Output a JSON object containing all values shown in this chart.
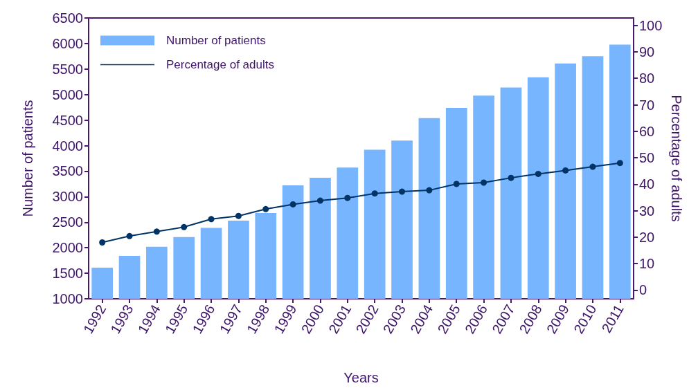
{
  "chart_data": {
    "type": "bar",
    "xlabel": "Years",
    "ylabel": "Number of patients",
    "y2label": "Percentage of adults",
    "categories": [
      "1992",
      "1993",
      "1994",
      "1995",
      "1996",
      "1997",
      "1998",
      "1999",
      "2000",
      "2001",
      "2002",
      "2003",
      "2004",
      "2005",
      "2006",
      "2007",
      "2008",
      "2009",
      "2010",
      "2011"
    ],
    "series": [
      {
        "name": "Number of patients",
        "color": "#77b5fe",
        "values": [
          1610,
          1840,
          2020,
          2210,
          2390,
          2530,
          2680,
          3220,
          3370,
          3570,
          3920,
          4100,
          4540,
          4740,
          4980,
          5140,
          5340,
          5610,
          5750,
          5980
        ]
      },
      {
        "name": "Percentage of adults",
        "type": "line",
        "axis": "y2",
        "color": "#003366",
        "values": [
          18,
          20.4,
          22.1,
          23.8,
          26.8,
          28,
          30.6,
          32.4,
          33.8,
          34.8,
          36.5,
          37.2,
          37.7,
          40.1,
          40.6,
          42.4,
          43.9,
          45.2,
          46.6,
          48
        ]
      }
    ],
    "ylim": [
      1000,
      6500
    ],
    "yticks": [
      1000,
      1500,
      2000,
      2500,
      3000,
      3500,
      4000,
      4500,
      5000,
      5500,
      6000,
      6500
    ],
    "y2lim": [
      -3.3,
      102.8
    ],
    "y2ticks": [
      0,
      10,
      20,
      30,
      40,
      50,
      60,
      70,
      80,
      90,
      100
    ],
    "marker": "circle",
    "line_style": "solid",
    "grid": false,
    "legend": "top left"
  }
}
